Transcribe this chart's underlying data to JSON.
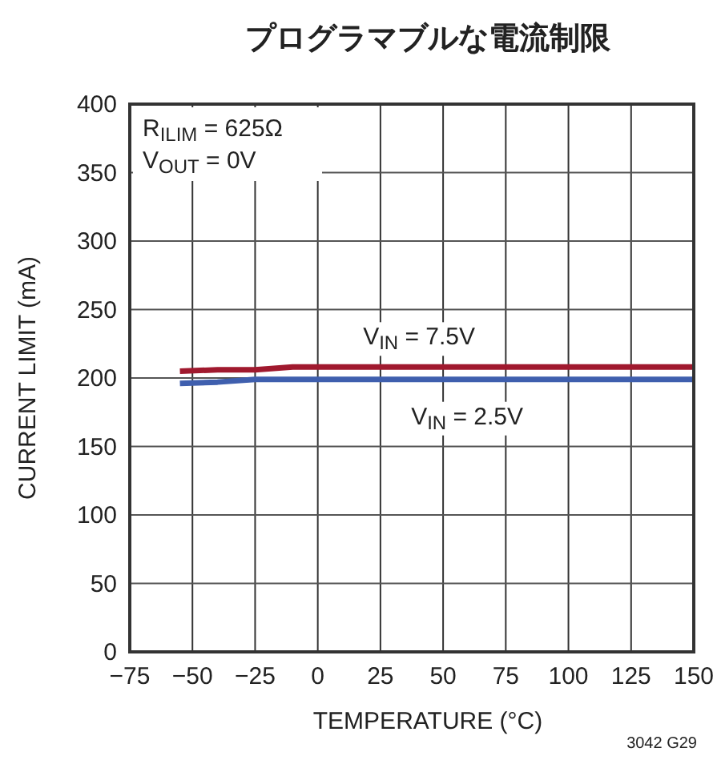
{
  "chart_data": {
    "type": "line",
    "title": "プログラマブルな電流制限",
    "xlabel": "TEMPERATURE (°C)",
    "ylabel": "CURRENT LIMIT (mA)",
    "xlim": [
      -75,
      150
    ],
    "xticks": [
      {
        "value": -75,
        "label": "−75"
      },
      {
        "value": -50,
        "label": "−50"
      },
      {
        "value": -25,
        "label": "−25"
      },
      0,
      25,
      50,
      75,
      100,
      125,
      150
    ],
    "ylim": [
      0,
      400
    ],
    "yticks": [
      0,
      50,
      100,
      150,
      200,
      250,
      300,
      350,
      400
    ],
    "grid": true,
    "series": [
      {
        "name": "V$_{IN}$ = 7.5V",
        "color": "#a0192e",
        "x": [
          -55,
          -40,
          -25,
          -10,
          0,
          25,
          50,
          75,
          100,
          125,
          150
        ],
        "values": [
          205,
          206,
          206,
          208,
          208,
          208,
          208,
          208,
          208,
          208,
          208
        ]
      },
      {
        "name": "V$_{IN}$ = 2.5V",
        "color": "#3f5fae",
        "x": [
          -55,
          -40,
          -25,
          -10,
          0,
          25,
          50,
          75,
          100,
          125,
          150
        ],
        "values": [
          196,
          197,
          199,
          199,
          199,
          199,
          199,
          199,
          199,
          199,
          199
        ]
      }
    ],
    "annotations": [
      "R$_{ILIM}$ = 625Ω\nV$_{OUT}$ = 0V",
      "3042 G29"
    ]
  }
}
